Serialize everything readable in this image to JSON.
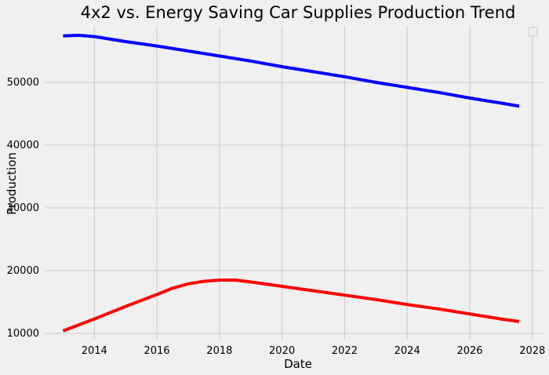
{
  "chart_data": {
    "type": "line",
    "title": "4x2 vs. Energy Saving Car Supplies Production Trend",
    "xlabel": "Date",
    "ylabel": "Production",
    "x_ticks": [
      "2014",
      "2016",
      "2018",
      "2020",
      "2022",
      "2024",
      "2026",
      "2028"
    ],
    "y_ticks": [
      "10000",
      "20000",
      "30000",
      "40000",
      "50000"
    ],
    "xlim": [
      "2012-06-01",
      "2028-05-01"
    ],
    "ylim": [
      9000,
      59000
    ],
    "grid": true,
    "legend": {
      "position": "top-right",
      "entries": []
    },
    "series": [
      {
        "color": "#0000ff",
        "points": [
          {
            "x": "2013-01-01",
            "y": 57400
          },
          {
            "x": "2013-07-01",
            "y": 57500
          },
          {
            "x": "2014-01-01",
            "y": 57300
          },
          {
            "x": "2015-01-01",
            "y": 56500
          },
          {
            "x": "2016-01-01",
            "y": 55800
          },
          {
            "x": "2017-01-01",
            "y": 55000
          },
          {
            "x": "2018-01-01",
            "y": 54200
          },
          {
            "x": "2019-01-01",
            "y": 53400
          },
          {
            "x": "2020-01-01",
            "y": 52500
          },
          {
            "x": "2021-01-01",
            "y": 51700
          },
          {
            "x": "2022-01-01",
            "y": 50900
          },
          {
            "x": "2023-01-01",
            "y": 50000
          },
          {
            "x": "2024-01-01",
            "y": 49200
          },
          {
            "x": "2025-01-01",
            "y": 48400
          },
          {
            "x": "2026-01-01",
            "y": 47500
          },
          {
            "x": "2027-01-01",
            "y": 46700
          },
          {
            "x": "2027-08-01",
            "y": 46200
          }
        ]
      },
      {
        "color": "#ff0000",
        "points": [
          {
            "x": "2013-01-01",
            "y": 10400
          },
          {
            "x": "2014-01-01",
            "y": 12300
          },
          {
            "x": "2015-01-01",
            "y": 14300
          },
          {
            "x": "2016-01-01",
            "y": 16200
          },
          {
            "x": "2016-07-01",
            "y": 17200
          },
          {
            "x": "2017-01-01",
            "y": 17900
          },
          {
            "x": "2017-07-01",
            "y": 18300
          },
          {
            "x": "2018-01-01",
            "y": 18500
          },
          {
            "x": "2018-07-01",
            "y": 18500
          },
          {
            "x": "2019-01-01",
            "y": 18200
          },
          {
            "x": "2020-01-01",
            "y": 17500
          },
          {
            "x": "2021-01-01",
            "y": 16800
          },
          {
            "x": "2022-01-01",
            "y": 16100
          },
          {
            "x": "2023-01-01",
            "y": 15400
          },
          {
            "x": "2024-01-01",
            "y": 14600
          },
          {
            "x": "2025-01-01",
            "y": 13900
          },
          {
            "x": "2026-01-01",
            "y": 13100
          },
          {
            "x": "2027-01-01",
            "y": 12300
          },
          {
            "x": "2027-08-01",
            "y": 11900
          }
        ]
      }
    ]
  }
}
